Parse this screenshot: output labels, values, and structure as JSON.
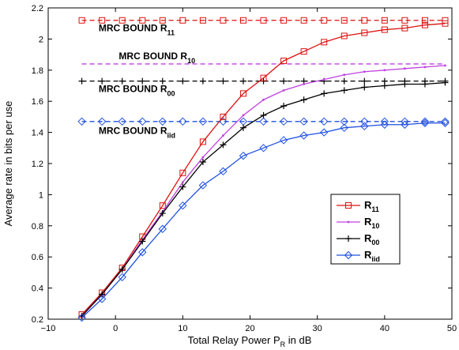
{
  "chart_data": {
    "type": "line",
    "title": "",
    "xlabel": "Total Relay Power P",
    "xlabel_sub": "R",
    "xlabel_suffix": " in dB",
    "ylabel": "Average rate in bits per use",
    "xlim": [
      -10,
      50
    ],
    "ylim": [
      0.2,
      2.2
    ],
    "xticks": [
      -10,
      0,
      10,
      20,
      30,
      40,
      50
    ],
    "xtick_labels": [
      "−10",
      "0",
      "10",
      "20",
      "30",
      "40",
      "50"
    ],
    "yticks": [
      0.2,
      0.4,
      0.6,
      0.8,
      1.0,
      1.2,
      1.4,
      1.6,
      1.8,
      2.0,
      2.2
    ],
    "ytick_labels": [
      "0.2",
      "0.4",
      "0.6",
      "0.8",
      "1",
      "1.2",
      "1.4",
      "1.6",
      "1.8",
      "2",
      "2.2"
    ],
    "grid": false,
    "legend_position": "center-right",
    "series": [
      {
        "name": "R",
        "sub": "11",
        "color": "#dd1111",
        "marker": "square",
        "style": "solid",
        "x": [
          -5,
          -2,
          1,
          4,
          7,
          10,
          13,
          16,
          19,
          22,
          25,
          28,
          31,
          34,
          37,
          40,
          43,
          46,
          49
        ],
        "y": [
          0.23,
          0.37,
          0.53,
          0.73,
          0.93,
          1.14,
          1.34,
          1.5,
          1.65,
          1.75,
          1.86,
          1.92,
          1.98,
          2.02,
          2.04,
          2.06,
          2.07,
          2.09,
          2.1
        ]
      },
      {
        "name": "R",
        "sub": "10",
        "color": "#c040e0",
        "marker": "dot",
        "style": "solid",
        "x": [
          -5,
          -2,
          1,
          4,
          7,
          10,
          13,
          16,
          19,
          22,
          25,
          28,
          31,
          34,
          37,
          40,
          43,
          46,
          49
        ],
        "y": [
          0.22,
          0.36,
          0.52,
          0.71,
          0.89,
          1.08,
          1.24,
          1.38,
          1.51,
          1.61,
          1.67,
          1.71,
          1.74,
          1.77,
          1.79,
          1.8,
          1.81,
          1.82,
          1.83
        ]
      },
      {
        "name": "R",
        "sub": "00",
        "color": "#000000",
        "marker": "plus",
        "style": "solid",
        "x": [
          -5,
          -2,
          1,
          4,
          7,
          10,
          13,
          16,
          19,
          22,
          25,
          28,
          31,
          34,
          37,
          40,
          43,
          46,
          49
        ],
        "y": [
          0.22,
          0.36,
          0.52,
          0.7,
          0.88,
          1.05,
          1.21,
          1.32,
          1.43,
          1.51,
          1.57,
          1.61,
          1.65,
          1.67,
          1.69,
          1.7,
          1.71,
          1.71,
          1.72
        ]
      },
      {
        "name": "R",
        "sub": "iid",
        "color": "#2050e0",
        "marker": "diamond",
        "style": "solid",
        "x": [
          -5,
          -2,
          1,
          4,
          7,
          10,
          13,
          16,
          19,
          22,
          25,
          28,
          31,
          34,
          37,
          40,
          43,
          46,
          49
        ],
        "y": [
          0.21,
          0.33,
          0.47,
          0.63,
          0.78,
          0.93,
          1.06,
          1.15,
          1.25,
          1.3,
          1.35,
          1.38,
          1.4,
          1.43,
          1.44,
          1.45,
          1.45,
          1.46,
          1.46
        ]
      }
    ],
    "bounds": [
      {
        "label": "MRC BOUND R",
        "sub": "11",
        "value": 2.12,
        "color": "#dd1111",
        "marker": "square",
        "x": [
          -5,
          -2,
          1,
          4,
          7,
          10,
          13,
          16,
          19,
          22,
          25,
          28,
          31,
          34,
          37,
          40,
          43,
          46,
          49
        ],
        "label_x": -2.5,
        "label_y": 2.05
      },
      {
        "label": "MRC BOUND R",
        "sub": "10",
        "value": 1.84,
        "color": "#c040e0",
        "marker": "none",
        "x": [],
        "label_x": 0.5,
        "label_y": 1.87
      },
      {
        "label": "MRC BOUND R",
        "sub": "00",
        "value": 1.73,
        "color": "#000000",
        "marker": "plus",
        "x": [
          -5,
          -2,
          1,
          4,
          7,
          10,
          13,
          16,
          19,
          22,
          25,
          28,
          31,
          34,
          37,
          40,
          43,
          46,
          49
        ],
        "label_x": -2.5,
        "label_y": 1.66
      },
      {
        "label": "MRC BOUND R",
        "sub": "iid",
        "value": 1.47,
        "color": "#2050e0",
        "marker": "diamond",
        "x": [
          -5,
          -2,
          1,
          4,
          7,
          10,
          13,
          16,
          19,
          22,
          25,
          28,
          31,
          34,
          37,
          40,
          43,
          46,
          49
        ],
        "label_x": -2.5,
        "label_y": 1.39
      }
    ]
  }
}
